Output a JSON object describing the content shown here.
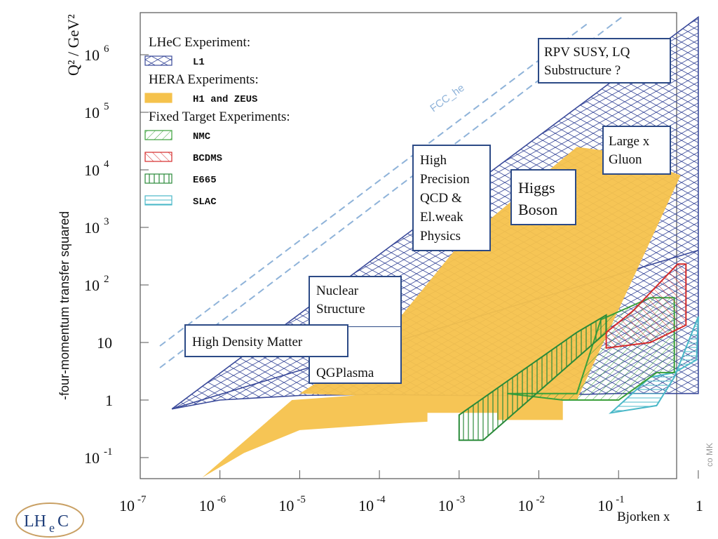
{
  "chart_data": {
    "type": "area",
    "title": "",
    "xlabel": "Bjorken x",
    "ylabel": "-four-momentum transfer squared",
    "y_unit_label": "Q² / GeV²",
    "x_scale": "log",
    "y_scale": "log",
    "xlim": [
      1e-07,
      1
    ],
    "ylim": [
      0.03,
      5000000
    ],
    "x_ticks": [
      {
        "base": "10",
        "exp": "-7"
      },
      {
        "base": "10",
        "exp": "-6"
      },
      {
        "base": "10",
        "exp": "-5"
      },
      {
        "base": "10",
        "exp": "-4"
      },
      {
        "base": "10",
        "exp": "-3"
      },
      {
        "base": "10",
        "exp": "-2"
      },
      {
        "base": "10",
        "exp": "-1"
      },
      {
        "base": "",
        "exp": "",
        "label": "1"
      }
    ],
    "y_ticks": [
      {
        "base": "10",
        "exp": "6"
      },
      {
        "base": "10",
        "exp": "5"
      },
      {
        "base": "10",
        "exp": "4"
      },
      {
        "base": "10",
        "exp": "3"
      },
      {
        "base": "10",
        "exp": "2"
      },
      {
        "base": "",
        "exp": "",
        "label": "10"
      },
      {
        "base": "",
        "exp": "",
        "label": "1"
      },
      {
        "base": "10",
        "exp": "-1"
      }
    ],
    "legend": {
      "placement": "top-left",
      "groups": [
        {
          "heading": "LHeC Experiment:",
          "items": [
            {
              "name": "L1",
              "color": "#3a4a9a",
              "pattern": "crosshatch"
            }
          ]
        },
        {
          "heading": "HERA Experiments:",
          "items": [
            {
              "name": "H1 and ZEUS",
              "color": "#f5c24c",
              "pattern": "solid"
            }
          ]
        },
        {
          "heading": "Fixed Target Experiments:",
          "items": [
            {
              "name": "NMC",
              "color": "#3aa03a",
              "pattern": "diagonal"
            },
            {
              "name": "BCDMS",
              "color": "#d42a2a",
              "pattern": "diagonal"
            },
            {
              "name": "E665",
              "color": "#2a8a3a",
              "pattern": "vertical"
            },
            {
              "name": "SLAC",
              "color": "#4ab8c8",
              "pattern": "horizontal"
            }
          ]
        }
      ]
    },
    "series": [
      {
        "name": "L1",
        "color": "#3a4a9a",
        "polygon": [
          [
            2.5e-07,
            0.7
          ],
          [
            1e-06,
            1.0
          ],
          [
            1e-05,
            1.2
          ],
          [
            0.0001,
            1.25
          ],
          [
            0.001,
            1.2
          ],
          [
            0.01,
            1.2
          ],
          [
            0.1,
            1.3
          ],
          [
            0.5,
            1.3
          ],
          [
            1,
            1.3
          ],
          [
            1,
            4500000
          ],
          [
            2.5e-07,
            0.7
          ]
        ],
        "inner_edge": [
          [
            2.5e-07,
            0.7
          ],
          [
            1,
            400
          ]
        ]
      },
      {
        "name": "H1 and ZEUS",
        "color": "#f5c24c",
        "polygon": [
          [
            6e-07,
            0.045
          ],
          [
            2e-06,
            0.12
          ],
          [
            1e-05,
            0.3
          ],
          [
            5e-05,
            0.35
          ],
          [
            0.0002,
            0.4
          ],
          [
            0.0004,
            0.42
          ],
          [
            0.0004,
            0.6
          ],
          [
            0.003,
            0.6
          ],
          [
            0.003,
            0.45
          ],
          [
            0.02,
            0.45
          ],
          [
            0.02,
            1.0
          ],
          [
            0.03,
            1.0
          ],
          [
            0.6,
            8000
          ],
          [
            0.1,
            20000
          ],
          [
            0.03,
            25000
          ],
          [
            0.001,
            500
          ],
          [
            0.0001,
            10
          ],
          [
            1e-05,
            1.3
          ],
          [
            5e-05,
            1.2
          ],
          [
            8e-06,
            1.0
          ],
          [
            6e-07,
            0.045
          ]
        ]
      },
      {
        "name": "NMC",
        "color": "#3aa03a",
        "polygon": [
          [
            0.004,
            1.3
          ],
          [
            0.03,
            1.3
          ],
          [
            0.06,
            25
          ],
          [
            0.25,
            60
          ],
          [
            0.5,
            60
          ],
          [
            0.5,
            3
          ],
          [
            0.3,
            3
          ],
          [
            0.1,
            1.0
          ],
          [
            0.05,
            1.0
          ],
          [
            0.02,
            1.0
          ],
          [
            0.004,
            1.3
          ]
        ]
      },
      {
        "name": "BCDMS",
        "color": "#d42a2a",
        "polygon": [
          [
            0.07,
            8
          ],
          [
            0.07,
            15
          ],
          [
            0.15,
            35
          ],
          [
            0.55,
            230
          ],
          [
            0.7,
            230
          ],
          [
            0.7,
            20
          ],
          [
            0.25,
            10
          ],
          [
            0.07,
            8
          ]
        ]
      },
      {
        "name": "E665",
        "color": "#2a8a3a",
        "polygon": [
          [
            0.001,
            0.2
          ],
          [
            0.002,
            0.2
          ],
          [
            0.07,
            15
          ],
          [
            0.07,
            30
          ],
          [
            0.03,
            15
          ],
          [
            0.001,
            0.55
          ],
          [
            0.001,
            0.2
          ]
        ]
      },
      {
        "name": "SLAC",
        "color": "#4ab8c8",
        "polygon": [
          [
            0.08,
            0.6
          ],
          [
            0.3,
            0.8
          ],
          [
            0.5,
            2.5
          ],
          [
            1.0,
            28
          ],
          [
            0.95,
            5
          ],
          [
            0.5,
            3
          ],
          [
            0.25,
            2.5
          ],
          [
            0.08,
            0.6
          ]
        ]
      }
    ],
    "annotations": [
      {
        "lines": [
          "RPV SUSY, LQ",
          "Substructure ?"
        ]
      },
      {
        "lines": [
          "Large x",
          "Gluon"
        ]
      },
      {
        "lines": [
          "High",
          "Precision",
          "QCD &",
          "El.weak",
          "Physics"
        ]
      },
      {
        "lines": [
          "Higgs",
          "Boson"
        ]
      },
      {
        "lines": [
          "Nuclear",
          "Structure"
        ]
      },
      {
        "lines": [
          "High Density Matter"
        ]
      },
      {
        "lines": [
          "QGPlasma"
        ]
      }
    ],
    "fcc_label": "FCC_he",
    "grid": false
  },
  "credit": "co MK",
  "logo": {
    "main": "LH",
    "sub": "e",
    "tail": "C"
  }
}
